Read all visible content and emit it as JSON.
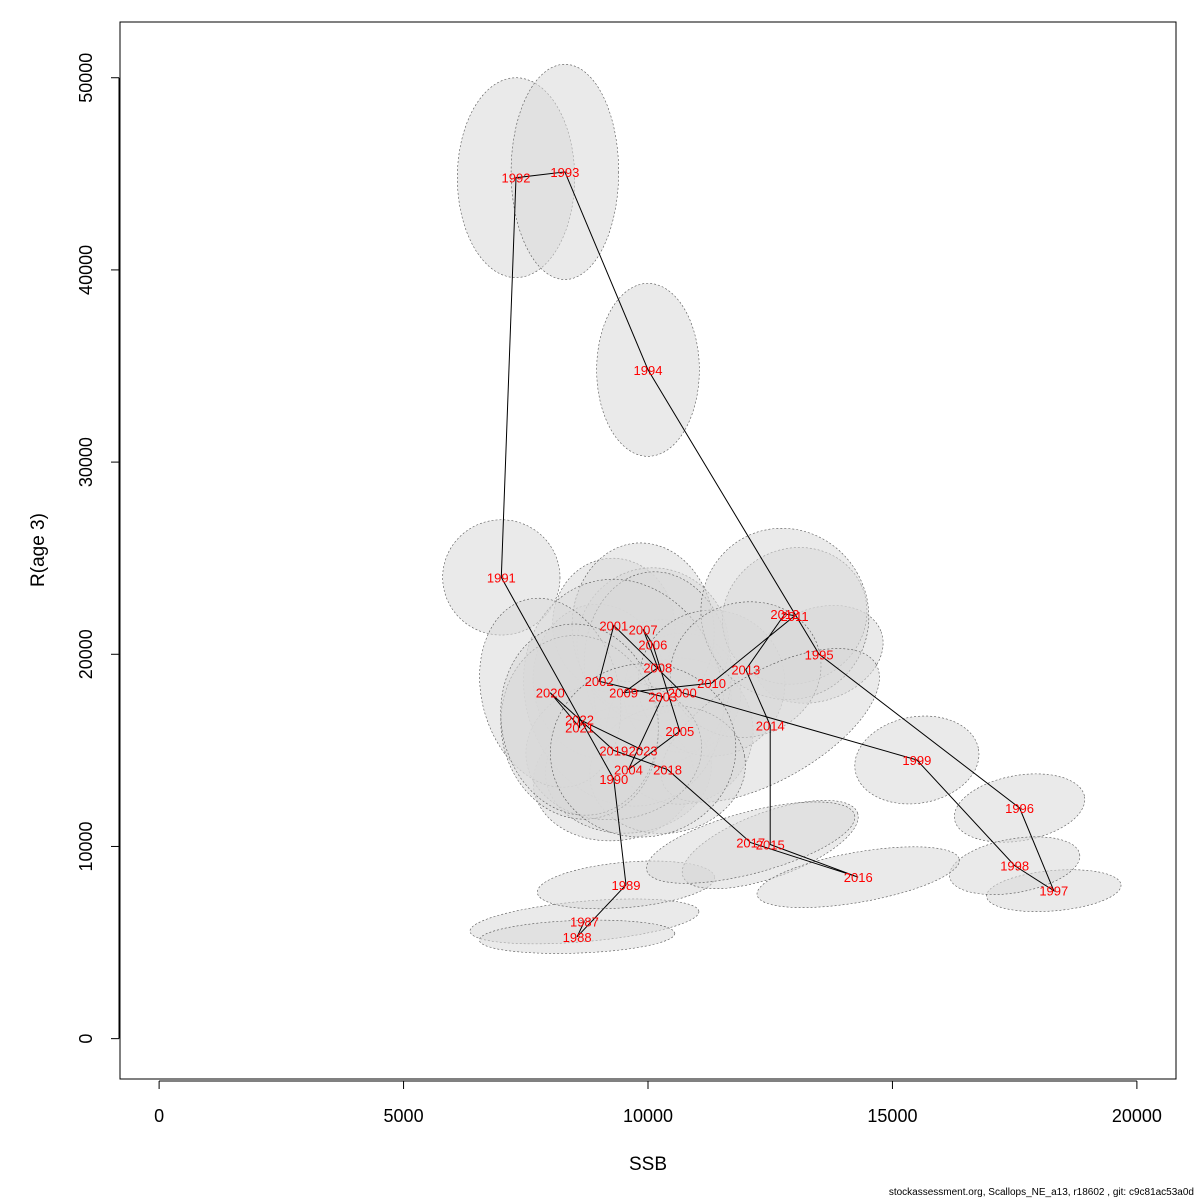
{
  "footer": "stockassessment.org, Scallops_NE_a13, r18602 , git: c9c81ac53a0d",
  "chart_data": {
    "type": "scatter",
    "xlabel": "SSB",
    "ylabel": "R(age 3)",
    "xlim": [
      -800,
      20800
    ],
    "ylim": [
      -2100,
      52900
    ],
    "x_ticks": [
      0,
      5000,
      10000,
      15000,
      20000
    ],
    "y_ticks": [
      0,
      10000,
      20000,
      30000,
      40000,
      50000
    ],
    "grid": false,
    "legend": "none",
    "colors": {
      "label": "#ff0000",
      "path": "#000000",
      "ellipse_fill": "#d9d9d9",
      "ellipse_stroke": "#555555"
    },
    "points": [
      {
        "year": "1987",
        "ssb": 8700,
        "rec": 6100,
        "sx": 2350,
        "sy": 1050,
        "rot": 5
      },
      {
        "year": "1988",
        "ssb": 8550,
        "rec": 5300,
        "sx": 2000,
        "sy": 850,
        "rot": 2
      },
      {
        "year": "1989",
        "ssb": 9550,
        "rec": 8000,
        "sx": 1820,
        "sy": 1180,
        "rot": 5
      },
      {
        "year": "1990",
        "ssb": 9300,
        "rec": 13500,
        "sx": 1650,
        "sy": 3200,
        "rot": 5
      },
      {
        "year": "1991",
        "ssb": 7000,
        "rec": 24000,
        "sx": 1200,
        "sy": 3000,
        "rot": 0
      },
      {
        "year": "1992",
        "ssb": 7300,
        "rec": 44800,
        "sx": 1200,
        "sy": 5200,
        "rot": 0
      },
      {
        "year": "1993",
        "ssb": 8300,
        "rec": 45100,
        "sx": 1100,
        "sy": 5600,
        "rot": 0
      },
      {
        "year": "1994",
        "ssb": 10000,
        "rec": 34800,
        "sx": 1050,
        "sy": 4500,
        "rot": 0
      },
      {
        "year": "1995",
        "ssb": 13500,
        "rec": 20000,
        "sx": 1350,
        "sy": 2400,
        "rot": 20
      },
      {
        "year": "1996",
        "ssb": 17600,
        "rec": 12000,
        "sx": 1350,
        "sy": 1700,
        "rot": 10
      },
      {
        "year": "1997",
        "ssb": 18300,
        "rec": 7700,
        "sx": 1380,
        "sy": 1050,
        "rot": 5
      },
      {
        "year": "1998",
        "ssb": 17500,
        "rec": 9000,
        "sx": 1350,
        "sy": 1400,
        "rot": 10
      },
      {
        "year": "1999",
        "ssb": 15500,
        "rec": 14500,
        "sx": 1280,
        "sy": 2250,
        "rot": 10
      },
      {
        "year": "2000",
        "ssb": 10700,
        "rec": 18000,
        "sx": 1200,
        "sy": 3100,
        "rot": 5
      },
      {
        "year": "2001",
        "ssb": 9300,
        "rec": 21500,
        "sx": 1250,
        "sy": 3500,
        "rot": 5
      },
      {
        "year": "2002",
        "ssb": 9000,
        "rec": 18600,
        "sx": 1350,
        "sy": 4000,
        "rot": 5
      },
      {
        "year": "2003",
        "ssb": 10300,
        "rec": 17800,
        "sx": 1400,
        "sy": 4000,
        "rot": 5
      },
      {
        "year": "2004",
        "ssb": 9600,
        "rec": 14000,
        "sx": 1700,
        "sy": 3300,
        "rot": 5
      },
      {
        "year": "2005",
        "ssb": 10650,
        "rec": 16000,
        "sx": 1500,
        "sy": 3800,
        "rot": 5
      },
      {
        "year": "2006",
        "ssb": 10100,
        "rec": 20500,
        "sx": 1550,
        "sy": 4000,
        "rot": 5
      },
      {
        "year": "2007",
        "ssb": 9900,
        "rec": 21300,
        "sx": 1450,
        "sy": 4500,
        "rot": 5
      },
      {
        "year": "2008",
        "ssb": 10200,
        "rec": 19300,
        "sx": 1500,
        "sy": 5000,
        "rot": 5
      },
      {
        "year": "2009",
        "ssb": 9500,
        "rec": 18000,
        "sx": 2000,
        "sy": 6000,
        "rot": 20
      },
      {
        "year": "2010",
        "ssb": 11300,
        "rec": 18500,
        "sx": 1500,
        "sy": 3800,
        "rot": 5
      },
      {
        "year": "2011",
        "ssb": 13000,
        "rec": 22000,
        "sx": 1500,
        "sy": 3500,
        "rot": 25
      },
      {
        "year": "2012",
        "ssb": 12800,
        "rec": 22100,
        "sx": 1700,
        "sy": 4500,
        "rot": 30
      },
      {
        "year": "2013",
        "ssb": 12000,
        "rec": 19200,
        "sx": 1550,
        "sy": 3500,
        "rot": 15
      },
      {
        "year": "2014",
        "ssb": 12500,
        "rec": 16300,
        "sx": 2500,
        "sy": 2800,
        "rot": 30
      },
      {
        "year": "2015",
        "ssb": 12500,
        "rec": 10100,
        "sx": 1900,
        "sy": 1700,
        "rot": 20
      },
      {
        "year": "2016",
        "ssb": 14300,
        "rec": 8400,
        "sx": 2100,
        "sy": 1300,
        "rot": 10
      },
      {
        "year": "2017",
        "ssb": 12100,
        "rec": 10200,
        "sx": 2200,
        "sy": 1600,
        "rot": 15
      },
      {
        "year": "2018",
        "ssb": 10400,
        "rec": 14000,
        "sx": 1600,
        "sy": 3300,
        "rot": 10
      },
      {
        "year": "2019",
        "ssb": 9300,
        "rec": 15000,
        "sx": 1800,
        "sy": 3600,
        "rot": 5
      },
      {
        "year": "2020",
        "ssb": 8000,
        "rec": 18000,
        "sx": 1400,
        "sy": 5000,
        "rot": 15
      },
      {
        "year": "2021",
        "ssb": 8600,
        "rec": 16200,
        "sx": 1600,
        "sy": 4800,
        "rot": 10
      },
      {
        "year": "2022",
        "ssb": 8600,
        "rec": 16600,
        "sx": 1600,
        "sy": 5000,
        "rot": 10
      },
      {
        "year": "2023",
        "ssb": 9900,
        "rec": 15000,
        "sx": 1900,
        "sy": 4500,
        "rot": 10
      }
    ]
  }
}
